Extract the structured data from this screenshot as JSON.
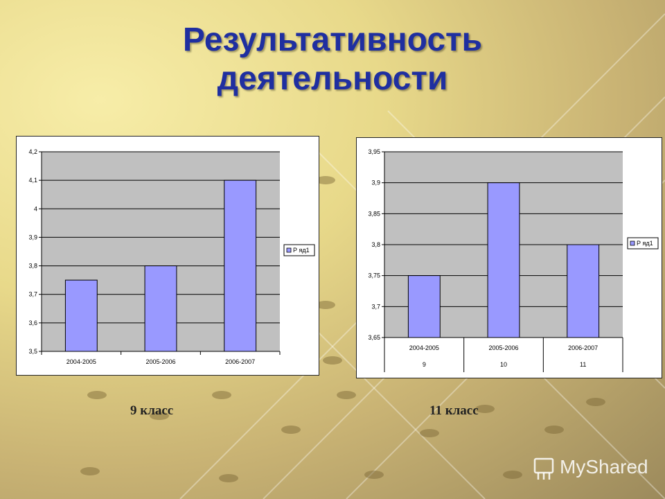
{
  "slide": {
    "title_line1": "Результативность",
    "title_line2": "деятельности",
    "captions": [
      "9 класс",
      "11 класс"
    ],
    "logo_text": "MyShared"
  },
  "colors": {
    "bar": "#9999ff",
    "plot_bg": "#c0c0c0",
    "title": "#1f2fa0"
  },
  "chart_data": [
    {
      "type": "bar",
      "categories": [
        "2004-2005",
        "2005-2006",
        "2006-2007"
      ],
      "series": [
        {
          "name": "Р яд1",
          "values": [
            3.75,
            3.8,
            4.1
          ]
        }
      ],
      "ylim": [
        3.5,
        4.2
      ],
      "yticks": [
        3.5,
        3.6,
        3.7,
        3.8,
        3.9,
        4.0,
        4.1,
        4.2
      ],
      "ytick_labels": [
        "3,5",
        "3,6",
        "3,7",
        "3,8",
        "3,9",
        "4",
        "4,1",
        "4,2"
      ],
      "grid": true,
      "legend": "right"
    },
    {
      "type": "bar",
      "categories": [
        "2004-2005",
        "2005-2006",
        "2006-2007"
      ],
      "subcategories": [
        "9",
        "10",
        "11"
      ],
      "series": [
        {
          "name": "Р яд1",
          "values": [
            3.75,
            3.9,
            3.8
          ]
        }
      ],
      "ylim": [
        3.65,
        3.95
      ],
      "yticks": [
        3.65,
        3.7,
        3.75,
        3.8,
        3.85,
        3.9,
        3.95
      ],
      "ytick_labels": [
        "3,65",
        "3,7",
        "3,75",
        "3,8",
        "3,85",
        "3,9",
        "3,95"
      ],
      "grid": true,
      "legend": "right"
    }
  ]
}
